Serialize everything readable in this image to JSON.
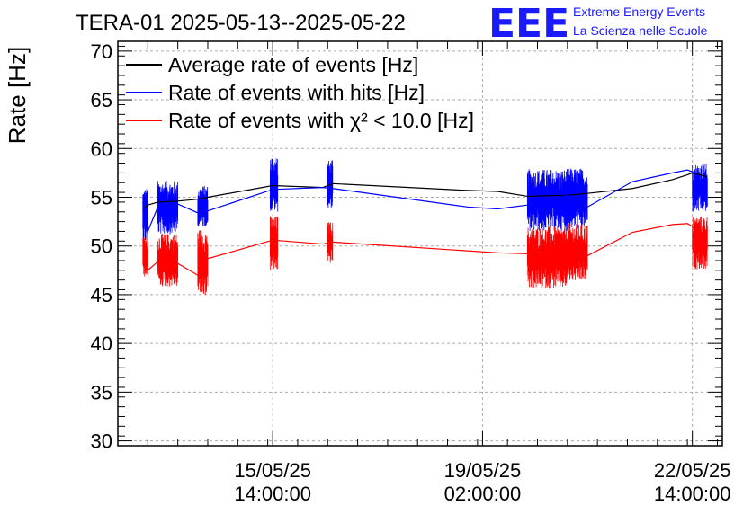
{
  "chart_data": {
    "type": "line",
    "title": "TERA-01 2025-05-13--2025-05-22",
    "ylabel": "Rate [Hz]",
    "xlabel": "",
    "ylim": [
      29.5,
      71
    ],
    "y_ticks": [
      30,
      35,
      40,
      45,
      50,
      55,
      60,
      65,
      70
    ],
    "x_axis": "datetime",
    "xlim": [
      "2025-05-13 00:00",
      "2025-05-23 02:00"
    ],
    "x_ticks": [
      {
        "x": "2025-05-15 14:00",
        "label_date": "15/05/25",
        "label_time": "14:00:00"
      },
      {
        "x": "2025-05-19 02:00",
        "label_date": "19/05/25",
        "label_time": "02:00:00"
      },
      {
        "x": "2025-05-22 14:00",
        "label_date": "22/05/25",
        "label_time": "14:00:00"
      }
    ],
    "grid": true,
    "legend_position": "top-left",
    "series": [
      {
        "name": "Average rate of events [Hz]",
        "color": "#000000",
        "points": [
          [
            "2025-05-13 10:00",
            53.8
          ],
          [
            "2025-05-13 12:00",
            54.2
          ],
          [
            "2025-05-13 16:00",
            54.5
          ],
          [
            "2025-05-14 00:00",
            54.6
          ],
          [
            "2025-05-14 08:00",
            54.8
          ],
          [
            "2025-05-14 12:00",
            55.0
          ],
          [
            "2025-05-15 14:00",
            56.2
          ],
          [
            "2025-05-16 10:00",
            56.0
          ],
          [
            "2025-05-16 14:00",
            56.4
          ],
          [
            "2025-05-18 20:00",
            55.7
          ],
          [
            "2025-05-19 08:00",
            55.6
          ],
          [
            "2025-05-19 20:00",
            55.1
          ],
          [
            "2025-05-20 12:00",
            55.2
          ],
          [
            "2025-05-20 20:00",
            55.4
          ],
          [
            "2025-05-21 14:00",
            55.9
          ],
          [
            "2025-05-22 06:00",
            56.8
          ],
          [
            "2025-05-22 12:00",
            57.3
          ],
          [
            "2025-05-22 14:00",
            57.5
          ],
          [
            "2025-05-22 20:00",
            57.1
          ]
        ]
      },
      {
        "name": "Rate of events with hits [Hz]",
        "color": "#0000ff",
        "points": [
          [
            "2025-05-13 10:00",
            54.5
          ],
          [
            "2025-05-13 12:00",
            51.5
          ],
          [
            "2025-05-13 16:00",
            54.0
          ],
          [
            "2025-05-14 00:00",
            54.3
          ],
          [
            "2025-05-14 08:00",
            53.4
          ],
          [
            "2025-05-14 12:00",
            53.6
          ],
          [
            "2025-05-15 14:00",
            55.8
          ],
          [
            "2025-05-16 10:00",
            56.0
          ],
          [
            "2025-05-16 14:00",
            55.9
          ],
          [
            "2025-05-18 20:00",
            54.0
          ],
          [
            "2025-05-19 08:00",
            53.8
          ],
          [
            "2025-05-19 20:00",
            54.2
          ],
          [
            "2025-05-20 12:00",
            55.2
          ],
          [
            "2025-05-20 20:00",
            54.0
          ],
          [
            "2025-05-21 14:00",
            56.6
          ],
          [
            "2025-05-22 06:00",
            57.5
          ],
          [
            "2025-05-22 12:00",
            57.8
          ],
          [
            "2025-05-22 14:00",
            57.6
          ],
          [
            "2025-05-22 20:00",
            55.8
          ]
        ]
      },
      {
        "name": "Rate of events with χ² < 10.0 [Hz]",
        "color": "#ff0000",
        "points": [
          [
            "2025-05-13 10:00",
            48.0
          ],
          [
            "2025-05-13 12:00",
            47.5
          ],
          [
            "2025-05-13 16:00",
            48.4
          ],
          [
            "2025-05-14 00:00",
            48.2
          ],
          [
            "2025-05-14 08:00",
            47.0
          ],
          [
            "2025-05-14 12:00",
            48.7
          ],
          [
            "2025-05-15 14:00",
            50.6
          ],
          [
            "2025-05-16 10:00",
            50.2
          ],
          [
            "2025-05-16 14:00",
            50.4
          ],
          [
            "2025-05-18 20:00",
            49.5
          ],
          [
            "2025-05-19 08:00",
            49.3
          ],
          [
            "2025-05-19 20:00",
            49.2
          ],
          [
            "2025-05-20 12:00",
            49.8
          ],
          [
            "2025-05-20 20:00",
            49.0
          ],
          [
            "2025-05-21 14:00",
            51.4
          ],
          [
            "2025-05-22 06:00",
            52.2
          ],
          [
            "2025-05-22 12:00",
            52.3
          ],
          [
            "2025-05-22 14:00",
            52.0
          ],
          [
            "2025-05-22 20:00",
            49.8
          ]
        ]
      }
    ],
    "bands": [
      {
        "series": 1,
        "x": [
          "2025-05-13 10:00",
          "2025-05-13 12:00"
        ],
        "y": [
          50.3,
          56.0
        ]
      },
      {
        "series": 1,
        "x": [
          "2025-05-13 16:00",
          "2025-05-14 00:00"
        ],
        "y": [
          51.2,
          56.7
        ]
      },
      {
        "series": 1,
        "x": [
          "2025-05-14 08:00",
          "2025-05-14 12:00"
        ],
        "y": [
          52.0,
          56.2
        ]
      },
      {
        "series": 1,
        "x": [
          "2025-05-15 13:00",
          "2025-05-15 16:00"
        ],
        "y": [
          53.5,
          59.4
        ]
      },
      {
        "series": 1,
        "x": [
          "2025-05-16 12:00",
          "2025-05-16 14:00"
        ],
        "y": [
          53.8,
          58.8
        ]
      },
      {
        "series": 1,
        "x": [
          "2025-05-19 20:00",
          "2025-05-20 12:00"
        ],
        "y": [
          51.5,
          57.9
        ]
      },
      {
        "series": 1,
        "x": [
          "2025-05-20 12:00",
          "2025-05-20 20:00"
        ],
        "y": [
          51.7,
          58.0
        ]
      },
      {
        "series": 1,
        "x": [
          "2025-05-22 14:00",
          "2025-05-22 20:00"
        ],
        "y": [
          53.4,
          58.5
        ]
      },
      {
        "series": 2,
        "x": [
          "2025-05-13 10:00",
          "2025-05-13 12:00"
        ],
        "y": [
          46.8,
          51.0
        ]
      },
      {
        "series": 2,
        "x": [
          "2025-05-13 16:00",
          "2025-05-14 00:00"
        ],
        "y": [
          45.8,
          51.3
        ]
      },
      {
        "series": 2,
        "x": [
          "2025-05-14 08:00",
          "2025-05-14 12:00"
        ],
        "y": [
          44.9,
          51.8
        ]
      },
      {
        "series": 2,
        "x": [
          "2025-05-15 13:00",
          "2025-05-15 16:00"
        ],
        "y": [
          47.4,
          53.1
        ]
      },
      {
        "series": 2,
        "x": [
          "2025-05-16 12:00",
          "2025-05-16 14:00"
        ],
        "y": [
          48.2,
          52.5
        ]
      },
      {
        "series": 2,
        "x": [
          "2025-05-19 20:00",
          "2025-05-20 12:00"
        ],
        "y": [
          45.6,
          52.0
        ]
      },
      {
        "series": 2,
        "x": [
          "2025-05-20 12:00",
          "2025-05-20 20:00"
        ],
        "y": [
          46.3,
          52.3
        ]
      },
      {
        "series": 2,
        "x": [
          "2025-05-22 14:00",
          "2025-05-22 20:00"
        ],
        "y": [
          47.6,
          53.1
        ]
      }
    ],
    "annotations": [
      {
        "text": "EEE"
      },
      {
        "text": "Extreme Energy Events"
      },
      {
        "text": "La Scienza nelle Scuole"
      }
    ]
  }
}
